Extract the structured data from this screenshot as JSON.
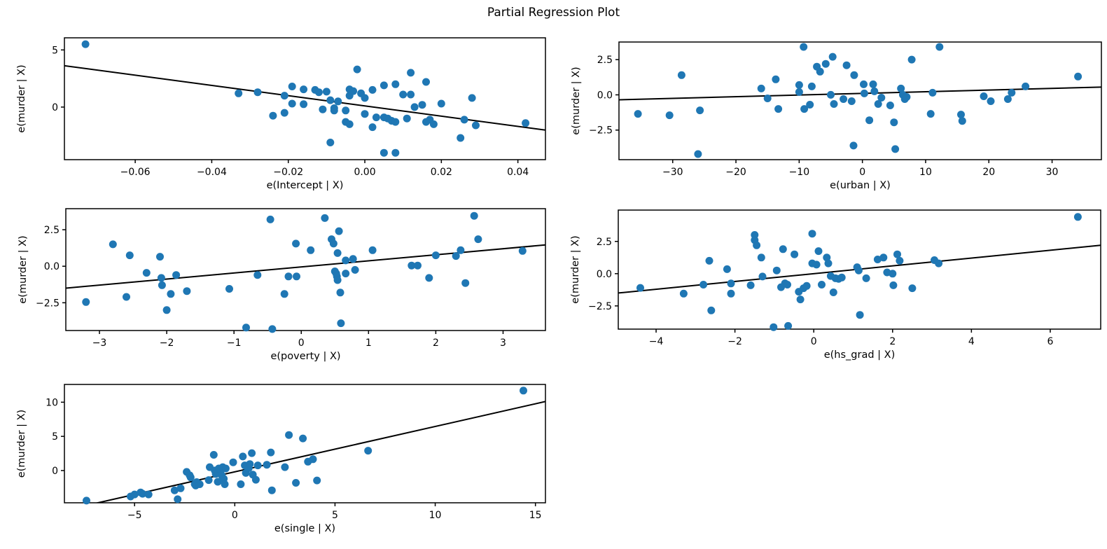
{
  "title": "Partial Regression Plot",
  "marker_color": "#1f77b4",
  "line_color": "#000000",
  "chart_data": [
    {
      "type": "scatter",
      "name": "intercept",
      "xlabel": "e(Intercept | X)",
      "ylabel": "e(murder | X)",
      "xlim": [
        -0.0785,
        0.0472
      ],
      "ylim": [
        -4.6,
        6.06
      ],
      "xticks": [
        -0.06,
        -0.04,
        -0.02,
        0.0,
        0.02,
        0.04
      ],
      "xtick_labels": [
        "−0.06",
        "−0.04",
        "−0.02",
        "0.00",
        "0.02",
        "0.04"
      ],
      "yticks": [
        0,
        5
      ],
      "ytick_labels": [
        "0",
        "5"
      ],
      "fit_line": {
        "x1": -0.0785,
        "y1": 3.62,
        "x2": 0.0472,
        "y2": -2.01
      },
      "points": [
        [
          -0.073,
          5.5
        ],
        [
          -0.033,
          1.2
        ],
        [
          -0.028,
          1.3
        ],
        [
          -0.024,
          -0.75
        ],
        [
          -0.021,
          1.0
        ],
        [
          -0.021,
          -0.5
        ],
        [
          -0.019,
          1.8
        ],
        [
          -0.019,
          0.3
        ],
        [
          -0.016,
          1.55
        ],
        [
          -0.016,
          0.25
        ],
        [
          -0.013,
          1.5
        ],
        [
          -0.012,
          1.3
        ],
        [
          -0.011,
          -0.2
        ],
        [
          -0.009,
          -3.1
        ],
        [
          -0.01,
          1.35
        ],
        [
          -0.009,
          0.6
        ],
        [
          -0.008,
          -0.1
        ],
        [
          -0.008,
          -0.3
        ],
        [
          -0.007,
          0.5
        ],
        [
          -0.005,
          -0.3
        ],
        [
          -0.005,
          -1.3
        ],
        [
          -0.004,
          1.55
        ],
        [
          -0.004,
          1.0
        ],
        [
          -0.004,
          -1.5
        ],
        [
          -0.003,
          1.4
        ],
        [
          -0.002,
          3.3
        ],
        [
          -0.001,
          1.2
        ],
        [
          0.0,
          0.8
        ],
        [
          0.0,
          -0.6
        ],
        [
          0.002,
          -1.76
        ],
        [
          0.002,
          1.5
        ],
        [
          0.003,
          -0.9
        ],
        [
          0.005,
          -4.0
        ],
        [
          0.005,
          1.9
        ],
        [
          0.005,
          -0.9
        ],
        [
          0.006,
          -1.0
        ],
        [
          0.008,
          -4.0
        ],
        [
          0.007,
          -1.2
        ],
        [
          0.008,
          2.0
        ],
        [
          0.008,
          -1.3
        ],
        [
          0.01,
          1.1
        ],
        [
          0.011,
          -1.0
        ],
        [
          0.012,
          3.0
        ],
        [
          0.012,
          1.1
        ],
        [
          0.013,
          0.0
        ],
        [
          0.015,
          0.2
        ],
        [
          0.016,
          2.2
        ],
        [
          0.016,
          -1.3
        ],
        [
          0.017,
          -1.1
        ],
        [
          0.018,
          -1.5
        ],
        [
          0.02,
          0.3
        ],
        [
          0.025,
          -2.7
        ],
        [
          0.026,
          -1.1
        ],
        [
          0.028,
          0.8
        ],
        [
          0.029,
          -1.6
        ],
        [
          0.042,
          -1.4
        ]
      ]
    },
    {
      "type": "scatter",
      "name": "urban",
      "xlabel": "e(urban | X)",
      "ylabel": "e(murder | X)",
      "xlim": [
        -38.5,
        37.8
      ],
      "ylim": [
        -4.6,
        3.75
      ],
      "xticks": [
        -30,
        -20,
        -10,
        0,
        10,
        20,
        30
      ],
      "xtick_labels": [
        "−30",
        "−20",
        "−10",
        "0",
        "10",
        "20",
        "30"
      ],
      "yticks": [
        -2.5,
        0.0,
        2.5
      ],
      "ytick_labels": [
        "−2.5",
        "0.0",
        "2.5"
      ],
      "fit_line": {
        "x1": -38.5,
        "y1": -0.35,
        "x2": 37.8,
        "y2": 0.55
      },
      "points": [
        [
          -35.5,
          -1.35
        ],
        [
          -30.5,
          -1.45
        ],
        [
          -28.6,
          1.4
        ],
        [
          -26.0,
          -4.2
        ],
        [
          -25.7,
          -1.1
        ],
        [
          -16.0,
          0.45
        ],
        [
          -15.0,
          -0.25
        ],
        [
          -13.7,
          1.1
        ],
        [
          -13.3,
          -1.0
        ],
        [
          -10.0,
          0.7
        ],
        [
          -10.0,
          0.2
        ],
        [
          -9.3,
          3.4
        ],
        [
          -9.2,
          -1.0
        ],
        [
          -8.3,
          -0.7
        ],
        [
          -8.0,
          0.6
        ],
        [
          -7.2,
          2.0
        ],
        [
          -6.7,
          1.65
        ],
        [
          -5.8,
          2.2
        ],
        [
          -5.0,
          0.0
        ],
        [
          -4.7,
          2.7
        ],
        [
          -4.5,
          -0.65
        ],
        [
          -3.0,
          -0.3
        ],
        [
          -2.5,
          2.1
        ],
        [
          -1.7,
          -0.45
        ],
        [
          -1.4,
          -3.6
        ],
        [
          -1.3,
          1.4
        ],
        [
          0.2,
          0.75
        ],
        [
          0.3,
          0.1
        ],
        [
          1.1,
          -1.8
        ],
        [
          1.7,
          0.75
        ],
        [
          1.9,
          0.25
        ],
        [
          2.5,
          -0.65
        ],
        [
          3.0,
          -0.2
        ],
        [
          4.4,
          -0.75
        ],
        [
          5.0,
          -1.95
        ],
        [
          5.2,
          -3.85
        ],
        [
          6.1,
          0.45
        ],
        [
          6.4,
          0.0
        ],
        [
          6.7,
          -0.3
        ],
        [
          7.0,
          -0.15
        ],
        [
          7.8,
          2.5
        ],
        [
          10.8,
          -1.35
        ],
        [
          11.1,
          0.15
        ],
        [
          12.2,
          3.4
        ],
        [
          15.6,
          -1.4
        ],
        [
          15.8,
          -1.85
        ],
        [
          19.2,
          -0.1
        ],
        [
          20.3,
          -0.45
        ],
        [
          23.0,
          -0.3
        ],
        [
          23.6,
          0.15
        ],
        [
          25.8,
          0.6
        ],
        [
          34.1,
          1.3
        ]
      ]
    },
    {
      "type": "scatter",
      "name": "poverty",
      "xlabel": "e(poverty | X)",
      "ylabel": "e(murder | X)",
      "xlim": [
        -3.5,
        3.63
      ],
      "ylim": [
        -4.4,
        3.94
      ],
      "xticks": [
        -3,
        -2,
        -1,
        0,
        1,
        2,
        3
      ],
      "xtick_labels": [
        "−3",
        "−2",
        "−1",
        "0",
        "1",
        "2",
        "3"
      ],
      "yticks": [
        -2.5,
        0.0,
        2.5
      ],
      "ytick_labels": [
        "−2.5",
        "0.0",
        "2.5"
      ],
      "fit_line": {
        "x1": -3.5,
        "y1": -1.5,
        "x2": 3.63,
        "y2": 1.46
      },
      "points": [
        [
          -3.2,
          -2.45
        ],
        [
          -2.8,
          1.5
        ],
        [
          -2.6,
          -2.1
        ],
        [
          -2.55,
          0.75
        ],
        [
          -2.3,
          -0.45
        ],
        [
          -2.1,
          0.65
        ],
        [
          -2.08,
          -0.8
        ],
        [
          -2.07,
          -1.3
        ],
        [
          -2.0,
          -3.0
        ],
        [
          -1.94,
          -1.9
        ],
        [
          -1.86,
          -0.6
        ],
        [
          -1.7,
          -1.7
        ],
        [
          -1.07,
          -1.55
        ],
        [
          -0.82,
          -4.2
        ],
        [
          -0.65,
          -0.6
        ],
        [
          -0.46,
          3.2
        ],
        [
          -0.43,
          -4.3
        ],
        [
          -0.25,
          -1.9
        ],
        [
          -0.19,
          -0.7
        ],
        [
          -0.08,
          1.55
        ],
        [
          -0.07,
          -0.7
        ],
        [
          0.14,
          1.1
        ],
        [
          0.35,
          3.3
        ],
        [
          0.45,
          1.85
        ],
        [
          0.48,
          1.55
        ],
        [
          0.5,
          -0.35
        ],
        [
          0.52,
          -0.5
        ],
        [
          0.53,
          -0.7
        ],
        [
          0.54,
          -0.95
        ],
        [
          0.54,
          0.9
        ],
        [
          0.56,
          2.4
        ],
        [
          0.58,
          -1.8
        ],
        [
          0.59,
          -3.9
        ],
        [
          0.66,
          0.4
        ],
        [
          0.66,
          -0.5
        ],
        [
          0.77,
          0.5
        ],
        [
          0.8,
          -0.25
        ],
        [
          1.06,
          1.1
        ],
        [
          1.64,
          0.05
        ],
        [
          1.73,
          0.05
        ],
        [
          1.9,
          -0.8
        ],
        [
          2.0,
          0.75
        ],
        [
          2.3,
          0.7
        ],
        [
          2.37,
          1.1
        ],
        [
          2.44,
          -1.15
        ],
        [
          2.57,
          3.45
        ],
        [
          2.63,
          1.85
        ],
        [
          3.29,
          1.05
        ]
      ]
    },
    {
      "type": "scatter",
      "name": "hs_grad",
      "xlabel": "e(hs_grad | X)",
      "ylabel": "e(murder | X)",
      "xlim": [
        -4.96,
        7.28
      ],
      "ylim": [
        -4.3,
        4.93
      ],
      "xticks": [
        -4,
        -2,
        0,
        2,
        4,
        6
      ],
      "xtick_labels": [
        "−4",
        "−2",
        "0",
        "2",
        "4",
        "6"
      ],
      "yticks": [
        -2.5,
        0.0,
        2.5
      ],
      "ytick_labels": [
        "−2.5",
        "0.0",
        "2.5"
      ],
      "fit_line": {
        "x1": -4.96,
        "y1": -1.5,
        "x2": 7.28,
        "y2": 2.2
      },
      "points": [
        [
          -4.4,
          -1.1
        ],
        [
          -3.3,
          -1.55
        ],
        [
          -2.8,
          -0.85
        ],
        [
          -2.65,
          1.0
        ],
        [
          -2.6,
          -2.85
        ],
        [
          -2.2,
          0.35
        ],
        [
          -2.1,
          -0.76
        ],
        [
          -2.1,
          -1.55
        ],
        [
          -1.6,
          -0.9
        ],
        [
          -1.5,
          3.0
        ],
        [
          -1.5,
          2.6
        ],
        [
          -1.45,
          2.2
        ],
        [
          -1.33,
          1.25
        ],
        [
          -1.3,
          -0.22
        ],
        [
          -1.02,
          -4.15
        ],
        [
          -0.94,
          0.25
        ],
        [
          -0.83,
          -1.05
        ],
        [
          -0.78,
          1.9
        ],
        [
          -0.73,
          -0.75
        ],
        [
          -0.67,
          -0.85
        ],
        [
          -0.65,
          -4.05
        ],
        [
          -0.49,
          1.5
        ],
        [
          -0.38,
          -1.4
        ],
        [
          -0.34,
          -2.0
        ],
        [
          -0.26,
          -1.13
        ],
        [
          -0.18,
          -0.95
        ],
        [
          -0.04,
          3.1
        ],
        [
          -0.04,
          0.8
        ],
        [
          0.07,
          0.7
        ],
        [
          0.12,
          1.75
        ],
        [
          0.2,
          -0.85
        ],
        [
          0.33,
          1.25
        ],
        [
          0.37,
          0.8
        ],
        [
          0.43,
          -0.18
        ],
        [
          0.5,
          -1.45
        ],
        [
          0.55,
          -0.36
        ],
        [
          0.63,
          -0.4
        ],
        [
          0.71,
          -0.3
        ],
        [
          1.1,
          0.5
        ],
        [
          1.14,
          0.25
        ],
        [
          1.17,
          -3.2
        ],
        [
          1.33,
          -0.36
        ],
        [
          1.62,
          1.1
        ],
        [
          1.77,
          1.25
        ],
        [
          1.86,
          0.1
        ],
        [
          2.0,
          0.0
        ],
        [
          2.02,
          -0.9
        ],
        [
          2.12,
          1.5
        ],
        [
          2.18,
          1.0
        ],
        [
          2.5,
          -1.13
        ],
        [
          3.06,
          1.05
        ],
        [
          3.17,
          0.8
        ],
        [
          6.7,
          4.4
        ]
      ]
    },
    {
      "type": "scatter",
      "name": "single",
      "xlabel": "e(single | X)",
      "ylabel": "e(murder | X)",
      "xlim": [
        -8.5,
        15.5
      ],
      "ylim": [
        -4.72,
        12.6
      ],
      "xticks": [
        -5,
        0,
        5,
        10,
        15
      ],
      "xtick_labels": [
        "−5",
        "0",
        "5",
        "10",
        "15"
      ],
      "yticks": [
        0,
        5,
        10
      ],
      "ytick_labels": [
        "0",
        "5",
        "10"
      ],
      "fit_line": {
        "x1": -8.5,
        "y1": -5.83,
        "x2": 15.5,
        "y2": 10.1
      },
      "points": [
        [
          -7.4,
          -4.4
        ],
        [
          -5.2,
          -3.8
        ],
        [
          -5.0,
          -3.5
        ],
        [
          -4.7,
          -3.2
        ],
        [
          -4.6,
          -3.4
        ],
        [
          -4.3,
          -3.5
        ],
        [
          -3.0,
          -2.9
        ],
        [
          -2.85,
          -4.2
        ],
        [
          -2.7,
          -2.6
        ],
        [
          -2.4,
          -0.2
        ],
        [
          -2.25,
          -0.7
        ],
        [
          -2.2,
          -1.0
        ],
        [
          -2.0,
          -2.0
        ],
        [
          -1.95,
          -2.2
        ],
        [
          -1.9,
          -1.7
        ],
        [
          -1.75,
          -2.0
        ],
        [
          -1.3,
          -1.4
        ],
        [
          -1.25,
          0.5
        ],
        [
          -1.05,
          2.3
        ],
        [
          -1.0,
          0.0
        ],
        [
          -0.95,
          -0.5
        ],
        [
          -0.85,
          -1.65
        ],
        [
          -0.8,
          0.3
        ],
        [
          -0.7,
          0.05
        ],
        [
          -0.65,
          -0.7
        ],
        [
          -0.6,
          0.5
        ],
        [
          -0.55,
          -1.2
        ],
        [
          -0.5,
          -2.0
        ],
        [
          -0.45,
          0.3
        ],
        [
          -0.08,
          1.2
        ],
        [
          0.3,
          -2.0
        ],
        [
          0.4,
          2.05
        ],
        [
          0.5,
          0.75
        ],
        [
          0.55,
          -0.35
        ],
        [
          0.7,
          0.35
        ],
        [
          0.75,
          0.95
        ],
        [
          0.85,
          2.55
        ],
        [
          0.9,
          -0.6
        ],
        [
          1.05,
          -1.35
        ],
        [
          1.15,
          0.75
        ],
        [
          1.6,
          0.85
        ],
        [
          1.8,
          2.65
        ],
        [
          1.85,
          -2.9
        ],
        [
          2.5,
          0.5
        ],
        [
          2.7,
          5.2
        ],
        [
          3.05,
          -1.8
        ],
        [
          3.4,
          4.7
        ],
        [
          3.65,
          1.3
        ],
        [
          3.9,
          1.65
        ],
        [
          4.1,
          -1.45
        ],
        [
          6.65,
          2.9
        ],
        [
          14.4,
          11.7
        ]
      ]
    }
  ]
}
